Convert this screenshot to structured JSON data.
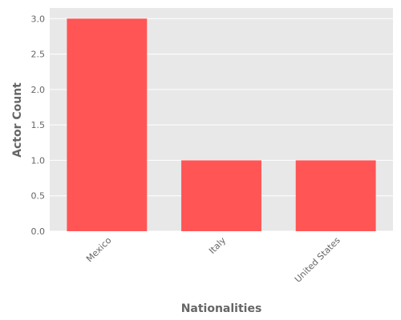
{
  "chart_data": {
    "type": "bar",
    "x_label": "Nationalities",
    "y_label": "Actor Count",
    "categories": [
      "Mexico",
      "Italy",
      "United States"
    ],
    "values": [
      3,
      1,
      1
    ],
    "color": "#ff5555",
    "ylim": [
      0,
      3.15
    ],
    "yticks": [
      {
        "value": 0,
        "label": "0.0"
      },
      {
        "value": 0.5,
        "label": "0.5"
      },
      {
        "value": 1,
        "label": "1.0"
      },
      {
        "value": 1.5,
        "label": "1.5"
      },
      {
        "value": 2,
        "label": "2.0"
      },
      {
        "value": 2.5,
        "label": "2.5"
      },
      {
        "value": 3,
        "label": "3.0"
      }
    ],
    "grid": true
  }
}
